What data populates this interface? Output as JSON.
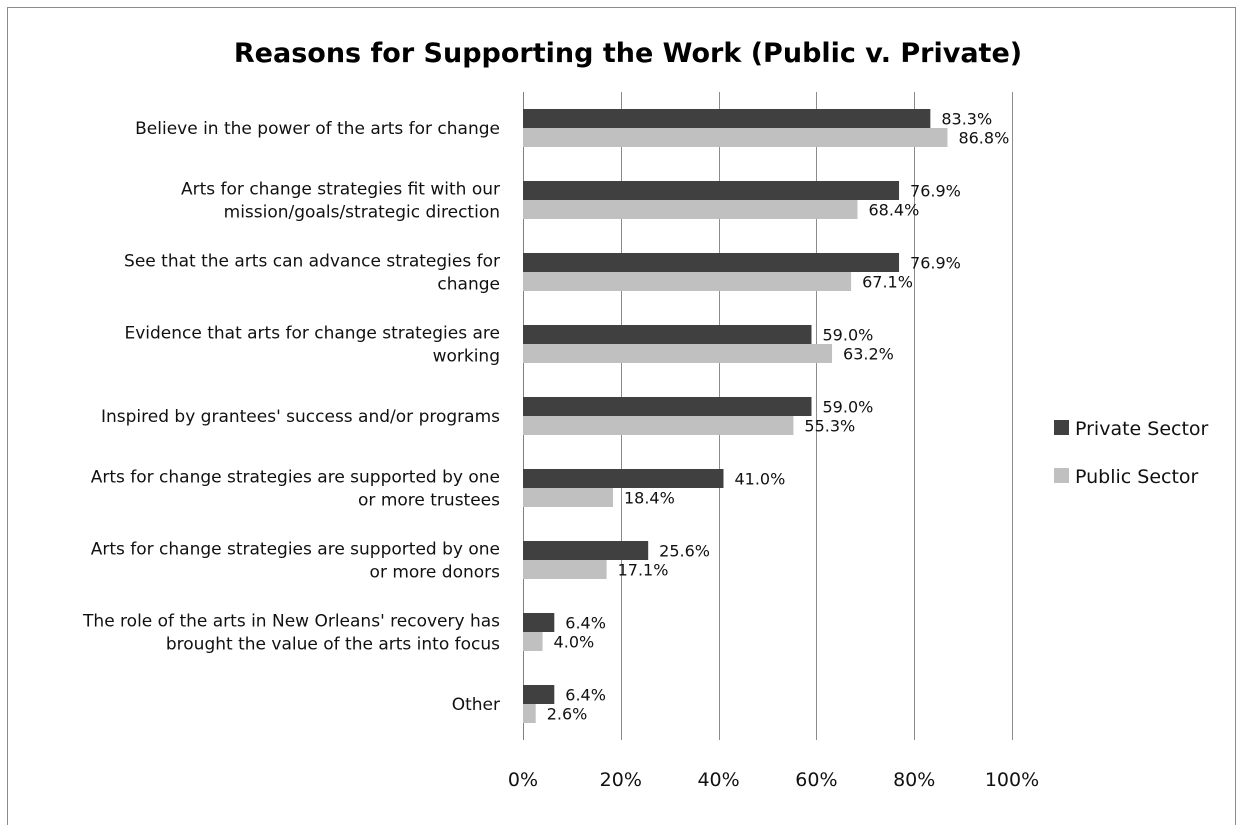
{
  "chart_data": {
    "type": "bar",
    "orientation": "horizontal",
    "title": "Reasons for Supporting the Work (Public v. Private)",
    "categories": [
      [
        "Believe in the power of the arts for change"
      ],
      [
        "Arts for change strategies fit with our",
        "mission/goals/strategic direction"
      ],
      [
        "See that the arts can advance strategies for",
        "change"
      ],
      [
        "Evidence that arts for change strategies are",
        "working"
      ],
      [
        "Inspired by grantees' success and/or programs"
      ],
      [
        "Arts for change strategies are supported by one",
        "or more trustees"
      ],
      [
        "Arts for change strategies are supported by one",
        "or more donors"
      ],
      [
        "The role of the arts in New Orleans' recovery has",
        "brought the value of the arts into focus"
      ],
      [
        "Other"
      ]
    ],
    "series": [
      {
        "name": "Private Sector",
        "color": "#404040",
        "values": [
          83.3,
          76.9,
          76.9,
          59.0,
          59.0,
          41.0,
          25.6,
          6.4,
          6.4
        ],
        "labels": [
          "83.3%",
          "76.9%",
          "76.9%",
          "59.0%",
          "59.0%",
          "41.0%",
          "25.6%",
          "6.4%",
          "6.4%"
        ]
      },
      {
        "name": "Public Sector",
        "color": "#c0c0c0",
        "values": [
          86.8,
          68.4,
          67.1,
          63.2,
          55.3,
          18.4,
          17.1,
          4.0,
          2.6
        ],
        "labels": [
          "86.8%",
          "68.4%",
          "67.1%",
          "63.2%",
          "55.3%",
          "18.4%",
          "17.1%",
          "4.0%",
          "2.6%"
        ]
      }
    ],
    "xlim": [
      0,
      100
    ],
    "xticks": [
      "0%",
      "20%",
      "40%",
      "60%",
      "80%",
      "100%"
    ],
    "grid": true,
    "legend": "right"
  }
}
